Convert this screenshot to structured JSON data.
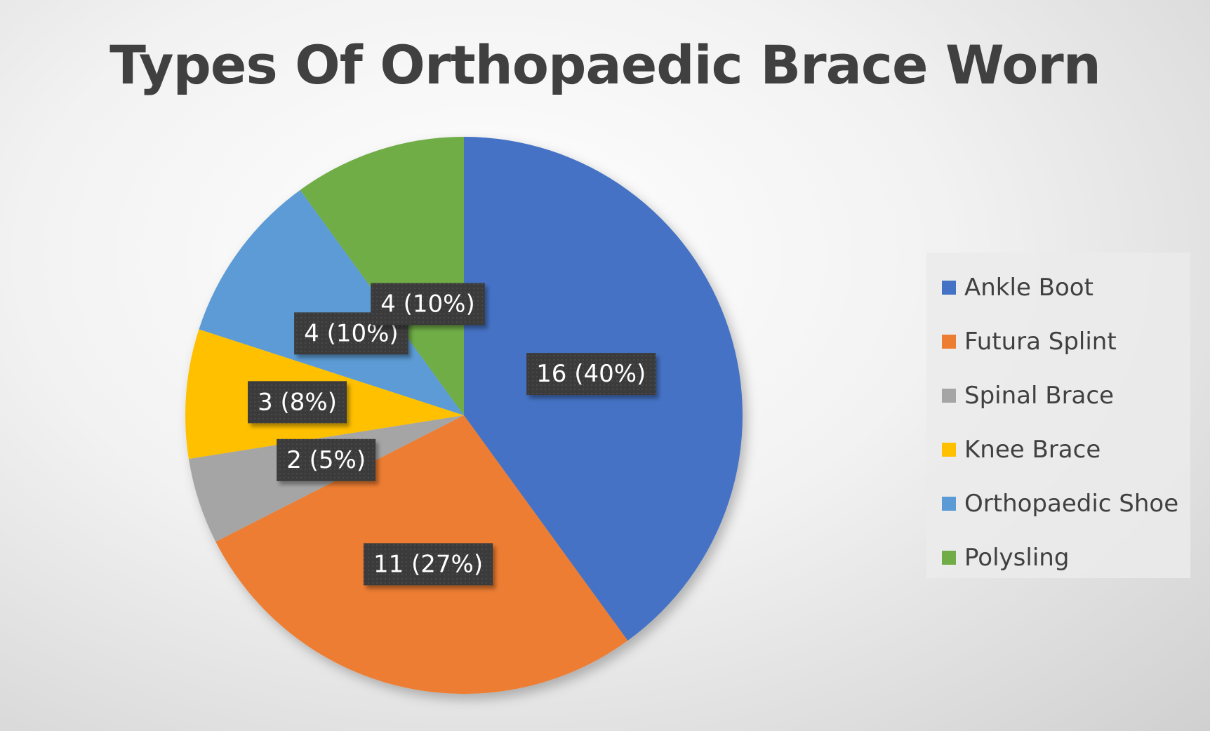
{
  "chart_data": {
    "type": "pie",
    "title": "Types Of Orthopaedic Brace Worn",
    "categories": [
      "Ankle Boot",
      "Futura Splint",
      "Spinal Brace",
      "Knee Brace",
      "Orthopaedic Shoe",
      "Polysling"
    ],
    "values": [
      16,
      11,
      2,
      3,
      4,
      4
    ],
    "data_labels": [
      "16 (40%)",
      "11 (27%)",
      "2 (5%)",
      "3 (8%)",
      "4 (10%)",
      "4 (10%)"
    ],
    "colors": [
      "#4472C4",
      "#ED7D31",
      "#A5A5A5",
      "#FFC000",
      "#5B9BD5",
      "#70AD47"
    ],
    "legend_position": "right",
    "start_angle": "12 o'clock",
    "direction": "clockwise"
  }
}
